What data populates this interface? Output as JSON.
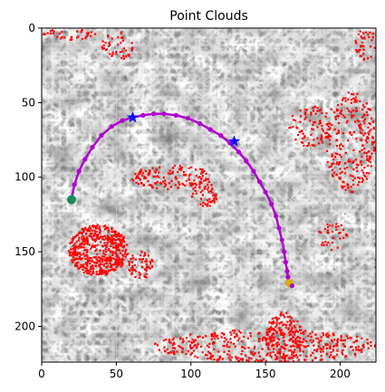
{
  "chart_data": {
    "type": "scatter",
    "title": "Point Clouds",
    "xlabel": "",
    "ylabel": "",
    "xlim": [
      0,
      224
    ],
    "ylim": [
      224,
      0
    ],
    "y_axis_inverted": true,
    "grid": true,
    "legend": "none",
    "background": "grayscale terrain image",
    "x_ticks": [
      0,
      50,
      100,
      150,
      200
    ],
    "y_ticks": [
      0,
      50,
      100,
      150,
      200
    ],
    "colors": {
      "point_cloud": "#ff0000",
      "trajectory": "#b000d0",
      "waypoint_marker": "#1010ff",
      "start_marker": "#1a8a5a",
      "end_marker": "#d4b000"
    },
    "trajectory": {
      "x": [
        20,
        22,
        25,
        29,
        34,
        40,
        47,
        54,
        61,
        68,
        75,
        82,
        90,
        98,
        106,
        113,
        120,
        126,
        132,
        137,
        142,
        146,
        150,
        154,
        157,
        159,
        161,
        162.5,
        163.5,
        164.5,
        165,
        165.5,
        166
      ],
      "y": [
        114,
        105,
        96,
        88,
        80,
        72,
        66,
        62,
        60,
        58.5,
        57.5,
        57.5,
        58.5,
        60.5,
        64,
        68,
        72,
        77,
        83,
        89,
        96,
        103,
        110,
        118,
        126,
        134,
        142,
        150,
        157,
        163,
        167,
        170,
        172
      ]
    },
    "waypoints": {
      "x": [
        61,
        129
      ],
      "y": [
        60,
        76
      ]
    },
    "start": {
      "x": 20,
      "y": 115
    },
    "end": {
      "x": 166,
      "y": 171
    },
    "point_cloud_clusters": [
      {
        "x_range": [
          18,
          58
        ],
        "y_range": [
          132,
          166
        ],
        "count": 520
      },
      {
        "x_range": [
          58,
          75
        ],
        "y_range": [
          150,
          168
        ],
        "count": 60
      },
      {
        "x_range": [
          60,
          115
        ],
        "y_range": [
          92,
          108
        ],
        "count": 140
      },
      {
        "x_range": [
          100,
          118
        ],
        "y_range": [
          103,
          120
        ],
        "count": 50
      },
      {
        "x_range": [
          75,
          224
        ],
        "y_range": [
          202,
          224
        ],
        "count": 420
      },
      {
        "x_range": [
          150,
          175
        ],
        "y_range": [
          190,
          224
        ],
        "count": 160
      },
      {
        "x_range": [
          190,
          224
        ],
        "y_range": [
          42,
          110
        ],
        "count": 260
      },
      {
        "x_range": [
          165,
          195
        ],
        "y_range": [
          52,
          80
        ],
        "count": 80
      },
      {
        "x_range": [
          0,
          40
        ],
        "y_range": [
          0,
          8
        ],
        "count": 35
      },
      {
        "x_range": [
          40,
          62
        ],
        "y_range": [
          2,
          22
        ],
        "count": 45
      },
      {
        "x_range": [
          210,
          224
        ],
        "y_range": [
          0,
          22
        ],
        "count": 40
      },
      {
        "x_range": [
          185,
          205
        ],
        "y_range": [
          130,
          150
        ],
        "count": 35
      }
    ]
  }
}
